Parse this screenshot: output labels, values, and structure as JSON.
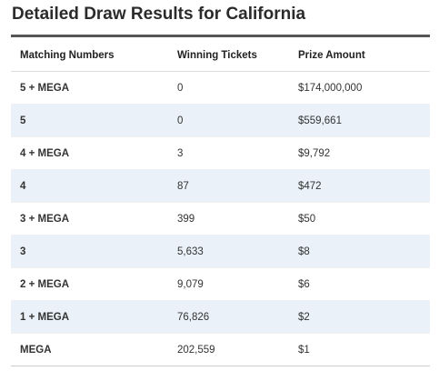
{
  "page": {
    "title": "Detailed Draw Results for California"
  },
  "table": {
    "columns": [
      "Matching Numbers",
      "Winning Tickets",
      "Prize Amount"
    ],
    "rows": [
      {
        "match": "5 + MEGA",
        "tickets": "0",
        "prize": "$174,000,000"
      },
      {
        "match": "5",
        "tickets": "0",
        "prize": "$559,661"
      },
      {
        "match": "4 + MEGA",
        "tickets": "3",
        "prize": "$9,792"
      },
      {
        "match": "4",
        "tickets": "87",
        "prize": "$472"
      },
      {
        "match": "3 + MEGA",
        "tickets": "399",
        "prize": "$50"
      },
      {
        "match": "3",
        "tickets": "5,633",
        "prize": "$8"
      },
      {
        "match": "2 + MEGA",
        "tickets": "9,079",
        "prize": "$6"
      },
      {
        "match": "1 + MEGA",
        "tickets": "76,826",
        "prize": "$2"
      },
      {
        "match": "MEGA",
        "tickets": "202,559",
        "prize": "$1"
      }
    ]
  },
  "colors": {
    "row_shade": "#eaf1f8",
    "header_rule": "#555555",
    "title_text": "#2b2b2b"
  }
}
